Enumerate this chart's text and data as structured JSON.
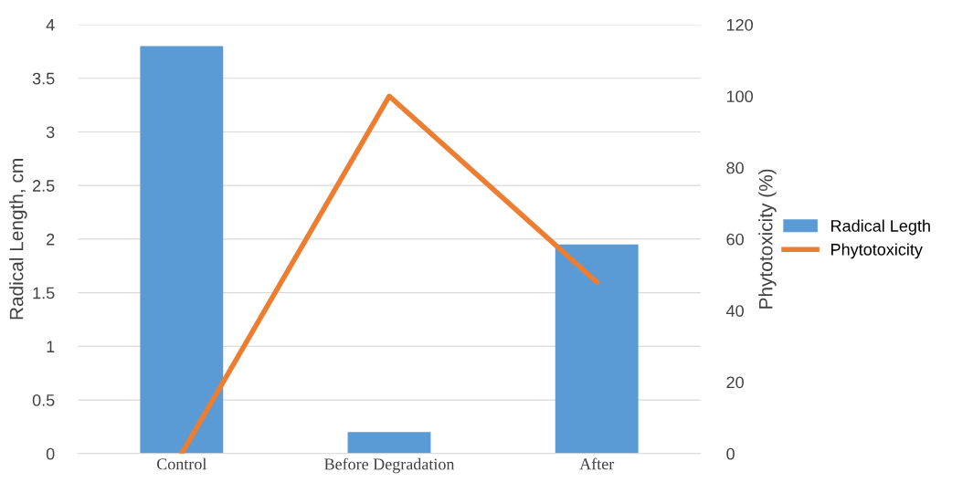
{
  "chart_data": {
    "type": "bar",
    "ylabel": "Radical Length, cm",
    "y2label": "Phytotoxicity (%)",
    "categories": [
      "Control",
      "Before Degradation",
      "After"
    ],
    "series": [
      {
        "name": "Radical Legth",
        "color": "#5b9bd5",
        "values": [
          3.8,
          0.2,
          1.95
        ]
      },
      {
        "name": "Phytotoxicity",
        "type": "line",
        "axis": "y2",
        "color": "#ed7d31",
        "values": [
          0,
          100,
          48
        ]
      }
    ],
    "ylim": [
      0,
      4
    ],
    "yticks": [
      0,
      0.5,
      1,
      1.5,
      2,
      2.5,
      3,
      3.5,
      4
    ],
    "y2lim": [
      0,
      120
    ],
    "y2ticks": [
      0,
      20,
      40,
      60,
      80,
      100,
      120
    ],
    "grid": "y",
    "legend": "right"
  }
}
